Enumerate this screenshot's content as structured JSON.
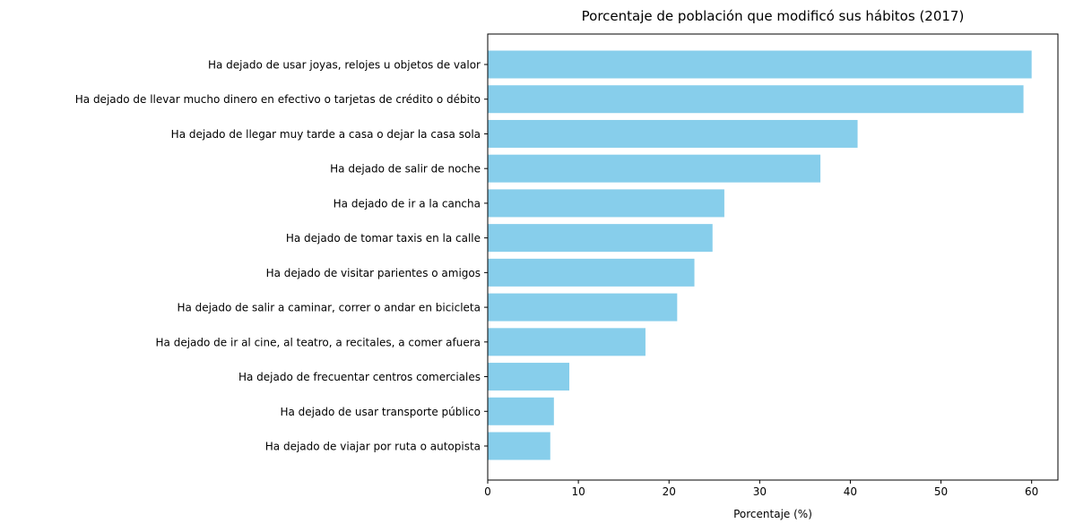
{
  "chart_data": {
    "type": "bar",
    "orientation": "horizontal",
    "title": "Porcentaje de población que modificó sus hábitos (2017)",
    "xlabel": "Porcentaje (%)",
    "ylabel": "",
    "xlim": [
      0,
      62.9
    ],
    "xticks": [
      0,
      10,
      20,
      30,
      40,
      50,
      60
    ],
    "grid": false,
    "bar_color": "#87CEEB",
    "categories": [
      "Ha dejado de usar joyas, relojes u objetos de valor",
      "Ha dejado de llevar mucho dinero en efectivo o tarjetas de crédito o débito",
      "Ha dejado de llegar muy tarde a casa o dejar la casa sola",
      "Ha dejado de salir de noche",
      "Ha dejado de ir a la cancha",
      "Ha dejado de tomar taxis en la calle",
      "Ha dejado de visitar parientes o amigos",
      "Ha dejado de salir a caminar, correr o andar en bicicleta",
      "Ha dejado de ir al cine, al teatro, a recitales, a comer afuera",
      "Ha dejado de frecuentar centros comerciales",
      "Ha dejado de usar transporte público",
      "Ha dejado de viajar por ruta o autopista"
    ],
    "values": [
      60.0,
      59.1,
      40.8,
      36.7,
      26.1,
      24.8,
      22.8,
      20.9,
      17.4,
      9.0,
      7.3,
      6.9
    ]
  }
}
